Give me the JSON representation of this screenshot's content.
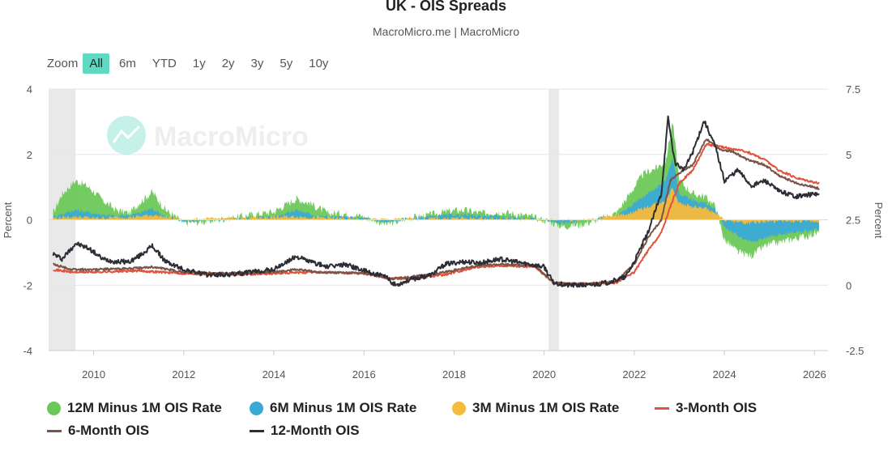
{
  "header": {
    "title": "UK - OIS Spreads",
    "subtitle": "MacroMicro.me | MacroMicro"
  },
  "zoom": {
    "label": "Zoom",
    "buttons": [
      "All",
      "6m",
      "YTD",
      "1y",
      "2y",
      "3y",
      "5y",
      "10y"
    ],
    "active": "All"
  },
  "watermark": "MacroMicro",
  "colors": {
    "m12_1m": "#6cc85a",
    "m6_1m": "#3ba9d6",
    "m3_1m": "#f5bb3c",
    "ois3m": "#e0533a",
    "ois6m": "#7a5448",
    "ois12m": "#2d2d36",
    "zoom_active": "#5fd9c1",
    "recession": "#e9e9e9"
  },
  "chart_data": {
    "type": "area+line",
    "title": "UK - OIS Spreads",
    "left_axis": {
      "label": "Percent",
      "min": -4,
      "max": 4,
      "ticks": [
        4,
        2,
        0,
        -2,
        -4
      ]
    },
    "right_axis": {
      "label": "Percent",
      "min": -2.5,
      "max": 7.5,
      "ticks": [
        7.5,
        5,
        2.5,
        0,
        -2.5
      ]
    },
    "x_axis": {
      "min": 2009.0,
      "max": 2026.3,
      "tick_labels": [
        "2010",
        "2012",
        "2014",
        "2016",
        "2018",
        "2020",
        "2022",
        "2024",
        "2026"
      ]
    },
    "shaded_periods": [
      [
        2009.0,
        2009.6
      ],
      [
        2020.1,
        2020.33
      ]
    ],
    "spread_series": [
      {
        "name": "12M Minus 1M OIS Rate",
        "axis": "left",
        "x": [
          2009.1,
          2009.3,
          2009.6,
          2009.9,
          2010.2,
          2010.5,
          2010.8,
          2011.0,
          2011.3,
          2011.6,
          2012.0,
          2012.5,
          2013.0,
          2013.5,
          2014.0,
          2014.5,
          2014.8,
          2015.2,
          2015.6,
          2016.0,
          2016.5,
          2017.0,
          2017.5,
          2017.8,
          2018.2,
          2018.6,
          2019.0,
          2019.5,
          2020.0,
          2020.4,
          2020.8,
          2021.2,
          2021.6,
          2021.9,
          2022.2,
          2022.5,
          2022.7,
          2022.85,
          2023.0,
          2023.3,
          2023.6,
          2023.8,
          2024.0,
          2024.3,
          2024.6,
          2024.9,
          2025.2,
          2025.5,
          2025.8,
          2026.1
        ],
        "values": [
          0.2,
          0.8,
          1.2,
          1.0,
          0.6,
          0.3,
          0.2,
          0.5,
          0.85,
          0.3,
          -0.1,
          -0.05,
          0.05,
          0.15,
          0.25,
          0.65,
          0.5,
          0.2,
          0.2,
          0.1,
          -0.15,
          0.05,
          0.15,
          0.25,
          0.3,
          0.2,
          0.25,
          0.15,
          0.0,
          -0.2,
          -0.15,
          0.0,
          0.2,
          0.8,
          1.4,
          1.6,
          1.8,
          3.0,
          1.2,
          0.8,
          0.7,
          0.4,
          -0.6,
          -1.0,
          -1.1,
          -0.8,
          -0.7,
          -0.6,
          -0.5,
          -0.4
        ]
      },
      {
        "name": "6M Minus 1M OIS Rate",
        "axis": "left",
        "x": [
          2009.1,
          2009.6,
          2010.0,
          2010.5,
          2011.0,
          2011.3,
          2011.6,
          2012.0,
          2013.0,
          2014.0,
          2014.5,
          2015.0,
          2016.0,
          2016.5,
          2017.0,
          2018.0,
          2019.0,
          2020.0,
          2020.4,
          2021.0,
          2021.6,
          2021.9,
          2022.2,
          2022.5,
          2022.7,
          2022.85,
          2023.0,
          2023.3,
          2023.6,
          2023.8,
          2024.0,
          2024.3,
          2024.6,
          2025.0,
          2025.5,
          2026.1
        ],
        "values": [
          0.1,
          0.3,
          0.2,
          0.1,
          0.2,
          0.35,
          0.1,
          -0.05,
          0.02,
          0.1,
          0.3,
          0.1,
          0.05,
          -0.08,
          0.05,
          0.15,
          0.1,
          0.0,
          -0.1,
          0.0,
          0.1,
          0.4,
          0.7,
          1.0,
          1.2,
          1.9,
          0.8,
          0.6,
          0.5,
          0.3,
          -0.2,
          -0.5,
          -0.7,
          -0.5,
          -0.4,
          -0.3
        ]
      },
      {
        "name": "3M Minus 1M OIS Rate",
        "axis": "left",
        "x": [
          2009.1,
          2009.6,
          2010.0,
          2011.0,
          2011.3,
          2012.0,
          2014.5,
          2016.0,
          2018.0,
          2020.0,
          2021.0,
          2021.9,
          2022.2,
          2022.5,
          2022.7,
          2022.85,
          2023.0,
          2023.3,
          2023.6,
          2023.8,
          2024.0,
          2024.5,
          2025.0,
          2026.1
        ],
        "values": [
          0.05,
          0.1,
          0.05,
          0.1,
          0.15,
          0.0,
          0.1,
          0.0,
          0.05,
          0.0,
          0.0,
          0.2,
          0.35,
          0.5,
          0.6,
          1.0,
          0.5,
          0.4,
          0.35,
          0.2,
          0.0,
          -0.1,
          -0.05,
          -0.05
        ]
      }
    ],
    "rate_series": [
      {
        "name": "3-Month OIS",
        "axis": "right",
        "x": [
          2009.1,
          2009.5,
          2010.0,
          2011.0,
          2012.0,
          2013.0,
          2014.0,
          2015.0,
          2016.0,
          2016.6,
          2017.0,
          2017.8,
          2018.5,
          2019.0,
          2019.8,
          2020.2,
          2020.5,
          2021.0,
          2021.6,
          2022.0,
          2022.3,
          2022.6,
          2022.8,
          2023.0,
          2023.3,
          2023.6,
          2023.9,
          2024.2,
          2024.5,
          2024.9,
          2025.2,
          2025.6,
          2026.1
        ],
        "values": [
          0.6,
          0.5,
          0.5,
          0.55,
          0.45,
          0.4,
          0.45,
          0.5,
          0.45,
          0.25,
          0.25,
          0.4,
          0.7,
          0.75,
          0.7,
          0.1,
          0.05,
          0.05,
          0.1,
          0.5,
          1.3,
          2.0,
          3.0,
          3.9,
          4.4,
          5.4,
          5.3,
          5.2,
          5.1,
          4.8,
          4.4,
          4.1,
          3.9
        ]
      },
      {
        "name": "6-Month OIS",
        "axis": "right",
        "x": [
          2009.1,
          2009.5,
          2010.0,
          2011.0,
          2011.3,
          2012.0,
          2013.0,
          2014.0,
          2014.5,
          2015.0,
          2016.0,
          2016.6,
          2017.0,
          2017.8,
          2018.5,
          2019.0,
          2019.8,
          2020.2,
          2020.5,
          2021.0,
          2021.6,
          2022.0,
          2022.3,
          2022.6,
          2022.8,
          2023.0,
          2023.3,
          2023.6,
          2023.9,
          2024.2,
          2024.5,
          2024.9,
          2025.2,
          2025.6,
          2026.1
        ],
        "values": [
          0.8,
          0.6,
          0.6,
          0.65,
          0.7,
          0.5,
          0.45,
          0.5,
          0.6,
          0.5,
          0.45,
          0.25,
          0.3,
          0.5,
          0.75,
          0.8,
          0.75,
          0.1,
          0.05,
          0.05,
          0.15,
          0.8,
          1.8,
          2.5,
          4.0,
          4.3,
          4.6,
          5.6,
          5.2,
          5.1,
          4.8,
          4.6,
          4.2,
          3.9,
          3.7
        ]
      },
      {
        "name": "12-Month OIS",
        "axis": "right",
        "x": [
          2009.1,
          2009.3,
          2009.6,
          2009.9,
          2010.2,
          2010.5,
          2010.8,
          2011.0,
          2011.3,
          2011.6,
          2012.0,
          2012.5,
          2013.0,
          2013.5,
          2014.0,
          2014.5,
          2014.8,
          2015.2,
          2015.6,
          2016.0,
          2016.5,
          2016.7,
          2017.0,
          2017.5,
          2017.8,
          2018.2,
          2018.6,
          2019.0,
          2019.5,
          2020.0,
          2020.2,
          2020.5,
          2021.0,
          2021.4,
          2021.8,
          2022.0,
          2022.3,
          2022.6,
          2022.75,
          2022.9,
          2023.1,
          2023.3,
          2023.55,
          2023.8,
          2024.0,
          2024.3,
          2024.6,
          2024.9,
          2025.2,
          2025.6,
          2026.1
        ],
        "values": [
          1.2,
          1.0,
          1.6,
          1.4,
          1.0,
          0.9,
          0.9,
          1.1,
          1.5,
          0.9,
          0.6,
          0.4,
          0.4,
          0.5,
          0.6,
          1.1,
          0.9,
          0.7,
          0.8,
          0.55,
          0.3,
          0.0,
          0.2,
          0.4,
          0.8,
          0.9,
          0.85,
          1.0,
          0.85,
          0.7,
          0.1,
          0.0,
          0.0,
          0.1,
          0.3,
          0.9,
          2.0,
          3.5,
          6.4,
          4.7,
          4.4,
          5.1,
          6.3,
          5.3,
          4.0,
          4.4,
          3.8,
          4.0,
          3.6,
          3.4,
          3.5
        ]
      }
    ]
  },
  "legend": {
    "items": [
      {
        "label": "12M Minus 1M OIS Rate",
        "kind": "dot",
        "color": "#6cc85a"
      },
      {
        "label": "6M Minus 1M OIS Rate",
        "kind": "dot",
        "color": "#3ba9d6"
      },
      {
        "label": "3M Minus 1M OIS Rate",
        "kind": "dot",
        "color": "#f5bb3c"
      },
      {
        "label": "3-Month OIS",
        "kind": "line",
        "color": "#e0533a"
      },
      {
        "label": "6-Month OIS",
        "kind": "line",
        "color": "#7a5448"
      },
      {
        "label": "12-Month OIS",
        "kind": "line",
        "color": "#2d2d36"
      }
    ]
  }
}
